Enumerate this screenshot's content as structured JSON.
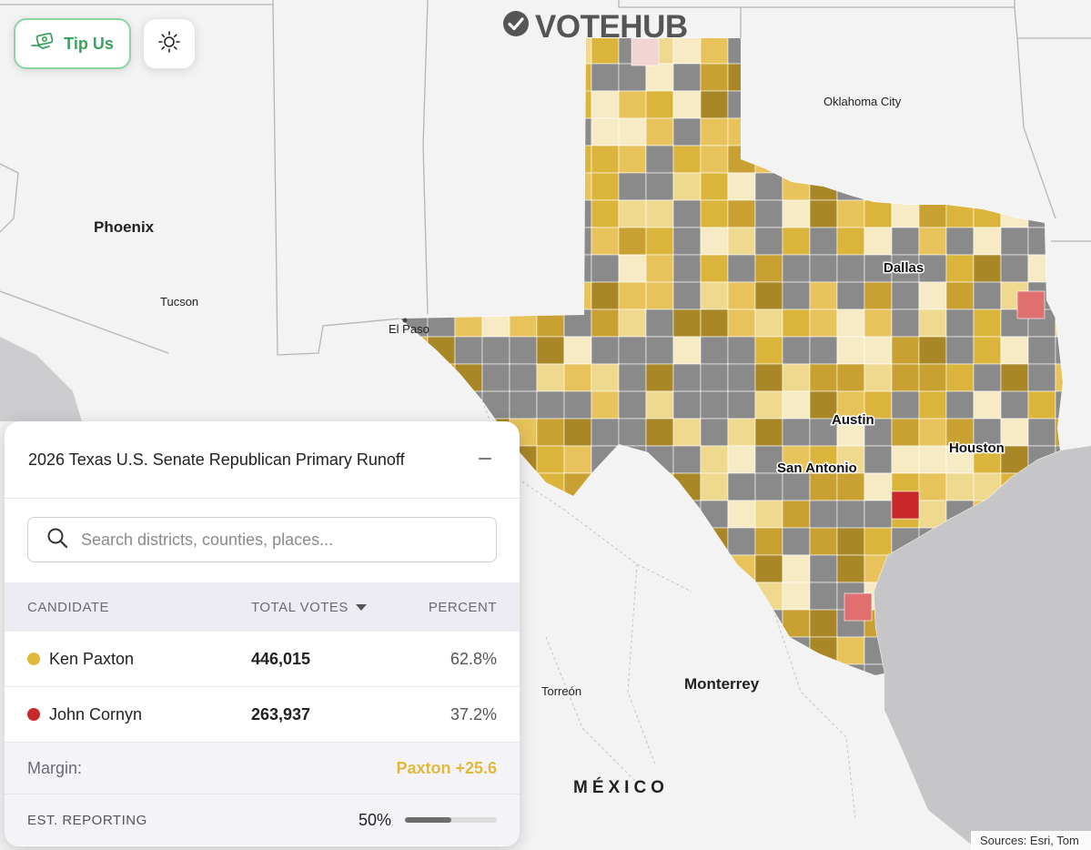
{
  "brand": {
    "name": "VOTEHUB"
  },
  "buttons": {
    "tip_label": "Tip Us"
  },
  "map": {
    "labels": {
      "oklahoma_city": "Oklahoma City",
      "phoenix": "Phoenix",
      "tucson": "Tucson",
      "el_paso": "El Paso",
      "dallas": "Dallas",
      "austin": "Austin",
      "houston": "Houston",
      "san_antonio": "San Antonio",
      "torreon": "Torreón",
      "monterrey": "Monterrey",
      "mexico": "MÉXICO"
    },
    "attribution": "Sources: Esri, Tom",
    "colors": {
      "paxton_scale": [
        "#f6ebc4",
        "#efd98f",
        "#e8c25a",
        "#dbb43c",
        "#c9a032",
        "#a98626"
      ],
      "cornyn_scale": [
        "#f2d4d4",
        "#e07070",
        "#c8282a"
      ],
      "no_results": "#8a8a8a",
      "water": "#c6c6c9",
      "land": "#f3f3f3"
    }
  },
  "panel": {
    "title": "2026 Texas U.S. Senate Republican Primary Runoff",
    "collapse_icon": "minus-icon",
    "search": {
      "placeholder": "Search districts, counties, places..."
    },
    "table": {
      "headers": {
        "candidate": "CANDIDATE",
        "votes": "TOTAL VOTES",
        "percent": "PERCENT"
      },
      "sort_icon": "caret-down-icon",
      "rows": [
        {
          "name": "Ken Paxton",
          "votes": "446,015",
          "percent": "62.8%",
          "color": "#e3b93c"
        },
        {
          "name": "John Cornyn",
          "votes": "263,937",
          "percent": "37.2%",
          "color": "#c8282a"
        }
      ]
    },
    "margin": {
      "label": "Margin:",
      "value": "Paxton +25.6",
      "color": "#e3b93c"
    },
    "reporting": {
      "label": "EST. REPORTING",
      "value": "50%",
      "fraction": 0.5
    }
  }
}
